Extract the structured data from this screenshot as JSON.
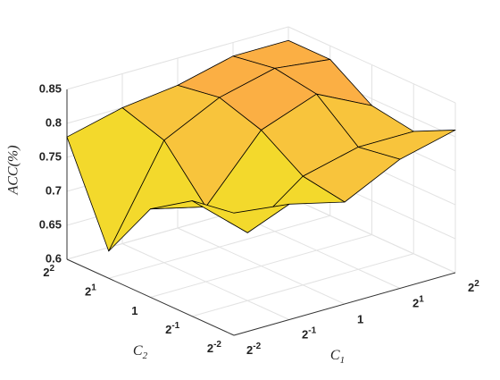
{
  "chart_data": {
    "type": "surface3d",
    "xlabel": {
      "text": "C",
      "sub": "1"
    },
    "ylabel": {
      "text": "C",
      "sub": "2"
    },
    "zlabel": "ACC(%)",
    "x": [
      0.25,
      0.5,
      1,
      2,
      4
    ],
    "y": [
      0.25,
      0.5,
      1,
      2,
      4
    ],
    "z": [
      [
        0.78,
        0.77,
        0.75,
        0.79,
        0.81
      ],
      [
        0.77,
        0.7,
        0.76,
        0.78,
        0.78
      ],
      [
        0.73,
        0.71,
        0.8,
        0.83,
        0.79
      ],
      [
        0.64,
        0.78,
        0.82,
        0.84,
        0.83
      ],
      [
        0.78,
        0.8,
        0.81,
        0.83,
        0.83
      ]
    ],
    "xlim": [
      0.25,
      4
    ],
    "ylim": [
      0.25,
      4
    ],
    "zlim": [
      0.6,
      0.85
    ],
    "xscale": "log",
    "yscale": "log",
    "xticks": [
      {
        "value": 0.25,
        "label": "2",
        "exponent": "-2"
      },
      {
        "value": 0.5,
        "label": "2",
        "exponent": "-1"
      },
      1,
      {
        "value": 2,
        "label": "2",
        "exponent": "1"
      },
      {
        "value": 4,
        "label": "2",
        "exponent": "2"
      }
    ],
    "yticks": [
      {
        "value": 0.25,
        "label": "2",
        "exponent": "-2"
      },
      {
        "value": 0.5,
        "label": "2",
        "exponent": "-1"
      },
      1,
      {
        "value": 2,
        "label": "2",
        "exponent": "1"
      },
      {
        "value": 4,
        "label": "2",
        "exponent": "2"
      }
    ],
    "zticks": [
      0.6,
      0.65,
      0.7,
      0.75,
      0.8,
      0.85
    ],
    "grid": true,
    "colormap": [
      "#22a9b5",
      "#8fc24a",
      "#f3d92c",
      "#f8c43c",
      "#fbaf44"
    ]
  }
}
